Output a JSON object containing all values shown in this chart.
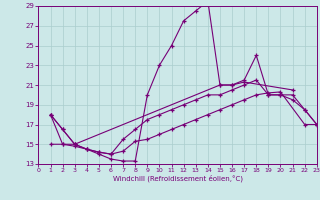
{
  "xlabel": "Windchill (Refroidissement éolien,°C)",
  "xlim": [
    0,
    23
  ],
  "ylim": [
    13,
    29
  ],
  "xticks": [
    0,
    1,
    2,
    3,
    4,
    5,
    6,
    7,
    8,
    9,
    10,
    11,
    12,
    13,
    14,
    15,
    16,
    17,
    18,
    19,
    20,
    21,
    22,
    23
  ],
  "yticks": [
    13,
    15,
    17,
    19,
    21,
    23,
    25,
    27,
    29
  ],
  "bg_color": "#cce8e8",
  "grid_color": "#aacece",
  "line_color": "#770077",
  "lines": [
    {
      "x": [
        1,
        2,
        3,
        4,
        5,
        6,
        7,
        8,
        9,
        10,
        11,
        12,
        13,
        14,
        15,
        16,
        17,
        21
      ],
      "y": [
        18,
        16.5,
        15,
        14.5,
        14,
        13.5,
        13.3,
        13.3,
        20,
        23,
        25,
        27.5,
        28.5,
        29.5,
        21,
        21,
        21.3,
        20.5
      ]
    },
    {
      "x": [
        1,
        2,
        3,
        15,
        16,
        17,
        18,
        19,
        20,
        21,
        22,
        23
      ],
      "y": [
        18,
        16.5,
        15,
        21,
        21,
        21.5,
        24,
        20,
        20,
        19.5,
        18.5,
        17
      ]
    },
    {
      "x": [
        1,
        2,
        3,
        4,
        5,
        6,
        7,
        8,
        9,
        10,
        11,
        12,
        13,
        14,
        15,
        16,
        17,
        18,
        19,
        20,
        21,
        22,
        23
      ],
      "y": [
        18,
        15,
        15,
        14.5,
        14.2,
        14,
        15.5,
        16.5,
        17.5,
        18,
        18.5,
        19,
        19.5,
        20,
        20,
        20.5,
        21,
        21.5,
        20,
        20,
        20,
        18.5,
        17
      ]
    },
    {
      "x": [
        1,
        2,
        3,
        4,
        5,
        6,
        7,
        8,
        9,
        10,
        11,
        12,
        13,
        14,
        15,
        16,
        17,
        18,
        19,
        20,
        22,
        23
      ],
      "y": [
        15,
        15,
        14.8,
        14.5,
        14.2,
        14,
        14.3,
        15.3,
        15.5,
        16,
        16.5,
        17,
        17.5,
        18,
        18.5,
        19,
        19.5,
        20,
        20.2,
        20.3,
        17,
        17
      ]
    }
  ]
}
